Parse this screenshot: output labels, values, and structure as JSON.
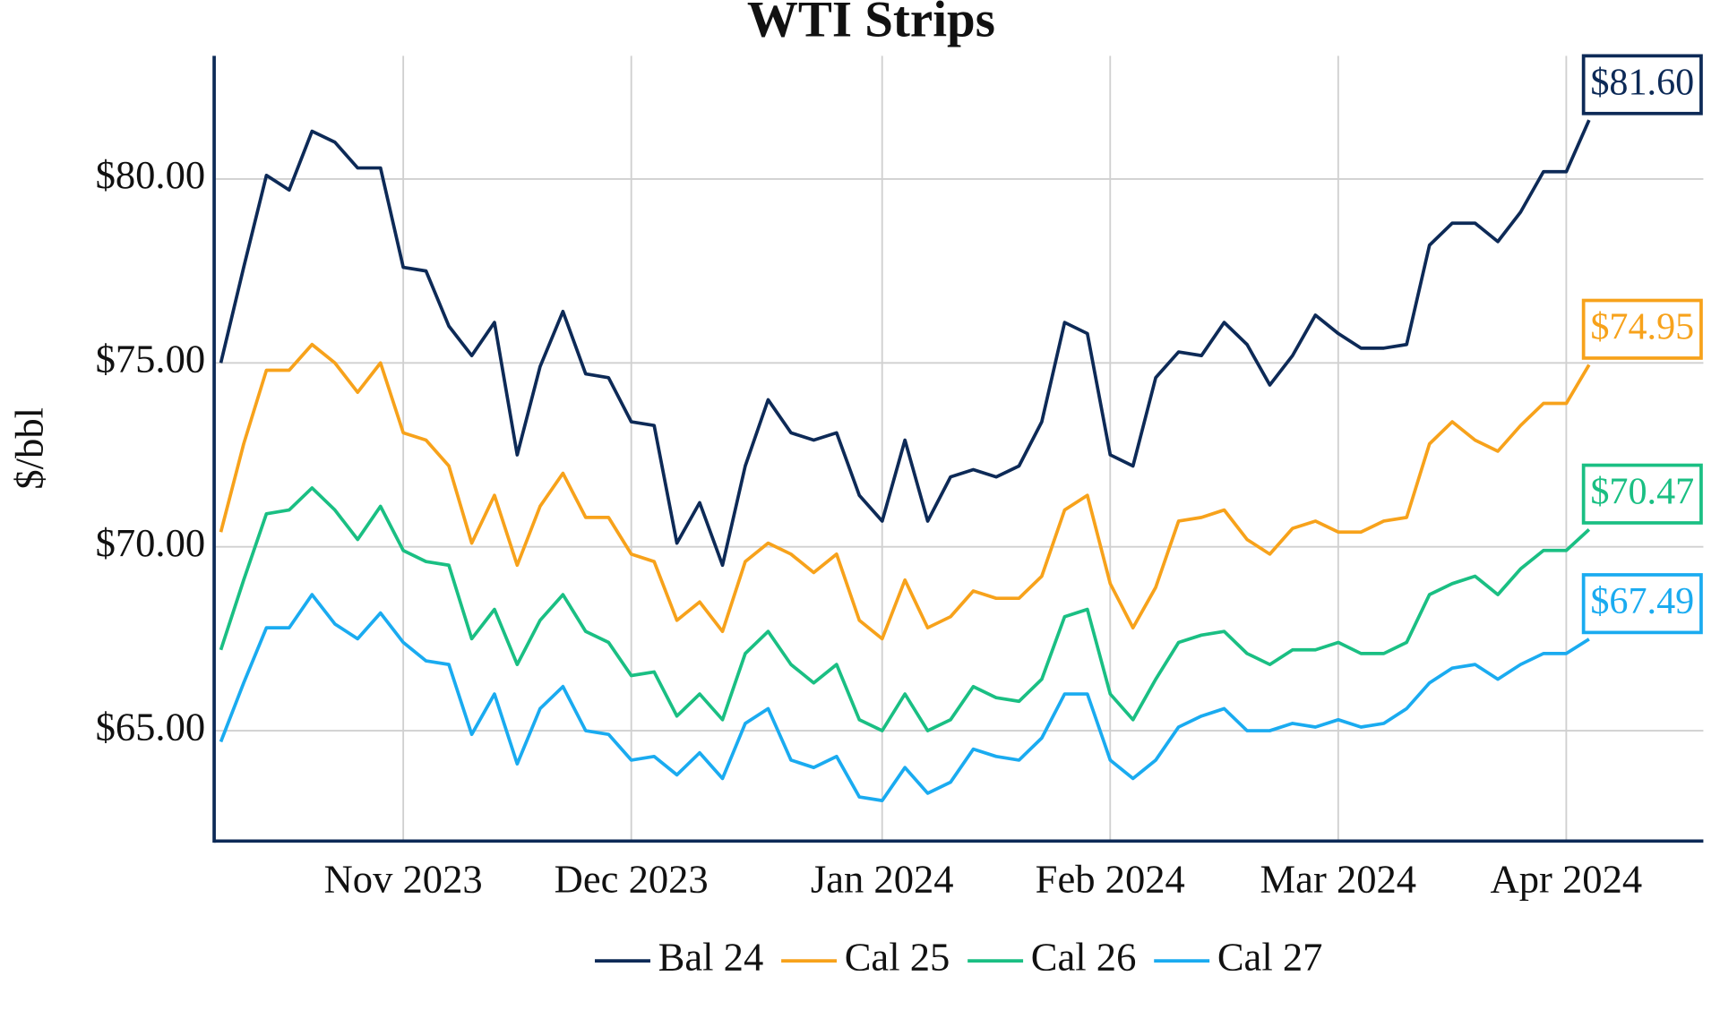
{
  "chart_data": {
    "type": "line",
    "title": "WTI Strips",
    "y_label": "$/bbl",
    "categories": [
      null,
      null,
      null,
      null,
      null,
      null,
      null,
      null,
      "Nov 2023",
      null,
      null,
      null,
      null,
      null,
      null,
      null,
      null,
      null,
      "Dec 2023",
      null,
      null,
      null,
      null,
      null,
      null,
      null,
      null,
      null,
      null,
      "Jan 2024",
      null,
      null,
      null,
      null,
      null,
      null,
      null,
      null,
      null,
      "Feb 2024",
      null,
      null,
      null,
      null,
      null,
      null,
      null,
      null,
      null,
      "Mar 2024",
      null,
      null,
      null,
      null,
      null,
      null,
      null,
      null,
      null,
      "Apr 2024",
      null
    ],
    "ylim": [
      62,
      83.35
    ],
    "yticks": [
      {
        "value": 65,
        "label": "$65.00"
      },
      {
        "value": 70,
        "label": "$70.00"
      },
      {
        "value": 75,
        "label": "$75.00"
      },
      {
        "value": 80,
        "label": "$80.00"
      }
    ],
    "grid": true,
    "legend": "bottom",
    "series": [
      {
        "name": "Bal 24",
        "color": "#0d2a57",
        "values": [
          75.0,
          77.6,
          80.1,
          79.7,
          81.3,
          81.0,
          80.3,
          80.3,
          77.6,
          77.5,
          76.0,
          75.2,
          76.1,
          72.5,
          74.9,
          76.4,
          74.7,
          74.6,
          73.4,
          73.3,
          70.1,
          71.2,
          69.5,
          72.2,
          74.0,
          73.1,
          72.9,
          73.1,
          71.4,
          70.7,
          72.9,
          70.7,
          71.9,
          72.1,
          71.9,
          72.2,
          73.4,
          76.1,
          75.8,
          72.5,
          72.2,
          74.6,
          75.3,
          75.2,
          76.1,
          75.5,
          74.4,
          75.2,
          76.3,
          75.8,
          75.4,
          75.4,
          75.5,
          78.2,
          78.8,
          78.8,
          78.3,
          79.1,
          80.2,
          80.2,
          81.6
        ],
        "value_labels": [
          null,
          null,
          null,
          null,
          null,
          null,
          null,
          null,
          null,
          null,
          null,
          null,
          null,
          null,
          null,
          null,
          null,
          null,
          null,
          null,
          null,
          null,
          null,
          null,
          null,
          null,
          null,
          null,
          null,
          null,
          null,
          null,
          null,
          null,
          null,
          null,
          null,
          null,
          null,
          null,
          null,
          null,
          null,
          null,
          null,
          null,
          null,
          null,
          null,
          null,
          null,
          null,
          null,
          null,
          null,
          null,
          null,
          null,
          null,
          null,
          "$81.60"
        ]
      },
      {
        "name": "Cal 25",
        "color": "#f7a21b",
        "values": [
          70.4,
          72.8,
          74.8,
          74.8,
          75.5,
          75.0,
          74.2,
          75.0,
          73.1,
          72.9,
          72.2,
          70.1,
          71.4,
          69.5,
          71.1,
          72.0,
          70.8,
          70.8,
          69.8,
          69.6,
          68.0,
          68.5,
          67.7,
          69.6,
          70.1,
          69.8,
          69.3,
          69.8,
          68.0,
          67.5,
          69.1,
          67.8,
          68.1,
          68.8,
          68.6,
          68.6,
          69.2,
          71.0,
          71.4,
          69.0,
          67.8,
          68.9,
          70.7,
          70.8,
          71.0,
          70.2,
          69.8,
          70.5,
          70.7,
          70.4,
          70.4,
          70.7,
          70.8,
          72.8,
          73.4,
          72.9,
          72.6,
          73.3,
          73.9,
          73.9,
          74.95
        ],
        "value_labels": [
          null,
          null,
          null,
          null,
          null,
          null,
          null,
          null,
          null,
          null,
          null,
          null,
          null,
          null,
          null,
          null,
          null,
          null,
          null,
          null,
          null,
          null,
          null,
          null,
          null,
          null,
          null,
          null,
          null,
          null,
          null,
          null,
          null,
          null,
          null,
          null,
          null,
          null,
          null,
          null,
          null,
          null,
          null,
          null,
          null,
          null,
          null,
          null,
          null,
          null,
          null,
          null,
          null,
          null,
          null,
          null,
          null,
          null,
          null,
          null,
          "$74.95"
        ]
      },
      {
        "name": "Cal 26",
        "color": "#1abf83",
        "values": [
          67.2,
          69.1,
          70.9,
          71.0,
          71.6,
          71.0,
          70.2,
          71.1,
          69.9,
          69.6,
          69.5,
          67.5,
          68.3,
          66.8,
          68.0,
          68.7,
          67.7,
          67.4,
          66.5,
          66.6,
          65.4,
          66.0,
          65.3,
          67.1,
          67.7,
          66.8,
          66.3,
          66.8,
          65.3,
          65.0,
          66.0,
          65.0,
          65.3,
          66.2,
          65.9,
          65.8,
          66.4,
          68.1,
          68.3,
          66.0,
          65.3,
          66.4,
          67.4,
          67.6,
          67.7,
          67.1,
          66.8,
          67.2,
          67.2,
          67.4,
          67.1,
          67.1,
          67.4,
          68.7,
          69.0,
          69.2,
          68.7,
          69.4,
          69.9,
          69.9,
          70.47
        ],
        "value_labels": [
          null,
          null,
          null,
          null,
          null,
          null,
          null,
          null,
          null,
          null,
          null,
          null,
          null,
          null,
          null,
          null,
          null,
          null,
          null,
          null,
          null,
          null,
          null,
          null,
          null,
          null,
          null,
          null,
          null,
          null,
          null,
          null,
          null,
          null,
          null,
          null,
          null,
          null,
          null,
          null,
          null,
          null,
          null,
          null,
          null,
          null,
          null,
          null,
          null,
          null,
          null,
          null,
          null,
          null,
          null,
          null,
          null,
          null,
          null,
          null,
          "$70.47"
        ]
      },
      {
        "name": "Cal 27",
        "color": "#1aabf0",
        "values": [
          64.7,
          66.3,
          67.8,
          67.8,
          68.7,
          67.9,
          67.5,
          68.2,
          67.4,
          66.9,
          66.8,
          64.9,
          66.0,
          64.1,
          65.6,
          66.2,
          65.0,
          64.9,
          64.2,
          64.3,
          63.8,
          64.4,
          63.7,
          65.2,
          65.6,
          64.2,
          64.0,
          64.3,
          63.2,
          63.1,
          64.0,
          63.3,
          63.6,
          64.5,
          64.3,
          64.2,
          64.8,
          66.0,
          66.0,
          64.2,
          63.7,
          64.2,
          65.1,
          65.4,
          65.6,
          65.0,
          65.0,
          65.2,
          65.1,
          65.3,
          65.1,
          65.2,
          65.6,
          66.3,
          66.7,
          66.8,
          66.4,
          66.8,
          67.1,
          67.1,
          67.49
        ],
        "value_labels": [
          null,
          null,
          null,
          null,
          null,
          null,
          null,
          null,
          null,
          null,
          null,
          null,
          null,
          null,
          null,
          null,
          null,
          null,
          null,
          null,
          null,
          null,
          null,
          null,
          null,
          null,
          null,
          null,
          null,
          null,
          null,
          null,
          null,
          null,
          null,
          null,
          null,
          null,
          null,
          null,
          null,
          null,
          null,
          null,
          null,
          null,
          null,
          null,
          null,
          null,
          null,
          null,
          null,
          null,
          null,
          null,
          null,
          null,
          null,
          null,
          "$67.49"
        ]
      }
    ]
  }
}
